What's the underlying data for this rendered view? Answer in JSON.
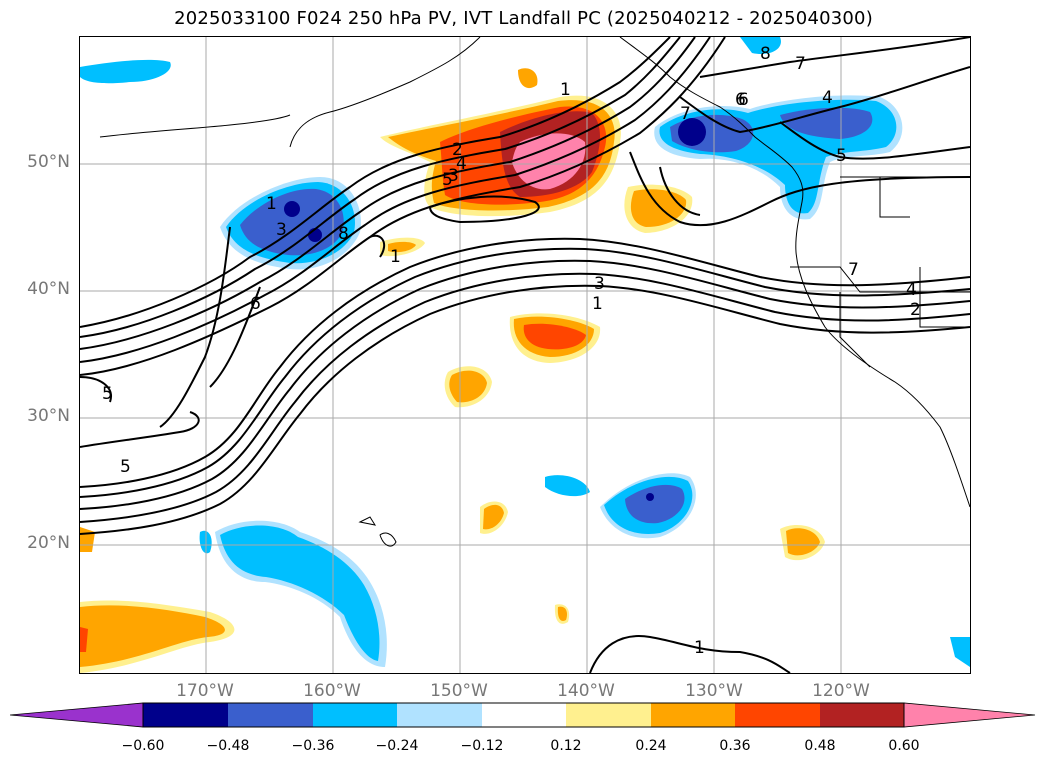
{
  "map": {
    "title": "2025033100 F024 250 hPa PV, IVT Landfall PC (2025040212 - 2025040300)",
    "lat_labels": [
      "50°N",
      "40°N",
      "30°N",
      "20°N"
    ],
    "lon_labels": [
      "170°W",
      "160°W",
      "150°W",
      "140°W",
      "130°W",
      "120°W"
    ],
    "contour_labels": [
      "1",
      "2",
      "3",
      "4",
      "5",
      "6",
      "7",
      "8",
      "1",
      "3",
      "8",
      "6",
      "1",
      "7",
      "6",
      "4",
      "5",
      "7",
      "4",
      "2",
      "1",
      "3",
      "1",
      "5",
      "5",
      "4",
      "1",
      "8",
      "2"
    ],
    "colorbar": {
      "ticks": [
        "−0.60",
        "−0.48",
        "−0.36",
        "−0.24",
        "−0.12",
        "0.12",
        "0.24",
        "0.36",
        "0.48",
        "0.60"
      ],
      "colors": [
        "#9a32cd",
        "#00008b",
        "#3a5fcd",
        "#00bfff",
        "#b0e2ff",
        "#ffffff",
        "#fff08f",
        "#ffa500",
        "#ff4500",
        "#b22222",
        "#ff82ab"
      ]
    }
  }
}
